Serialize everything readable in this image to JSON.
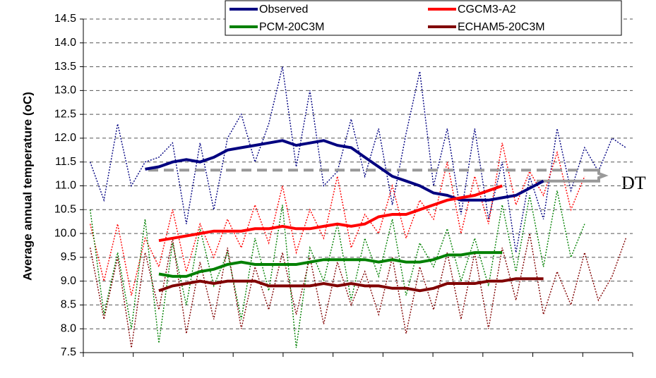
{
  "chart_data": {
    "type": "line",
    "y_label": "Average annual temperature (oC)",
    "annotation": "DT",
    "reference_line": 11.33,
    "bracket": [
      11.1,
      11.33
    ],
    "categories": [
      null,
      null,
      null,
      null,
      null,
      null,
      null,
      null,
      null,
      null,
      null,
      null,
      null,
      null,
      null,
      null,
      null,
      null,
      null,
      null,
      null,
      null,
      null,
      null,
      null,
      null,
      null,
      null,
      null,
      null,
      null,
      null,
      null,
      null,
      null,
      null,
      null,
      null,
      null,
      null
    ],
    "ylim": [
      7.5,
      14.5
    ],
    "yticks": [
      7.5,
      {
        "value": 8,
        "label": "8.0"
      },
      8.5,
      {
        "value": 9,
        "label": "9.0"
      },
      9.5,
      {
        "value": 10,
        "label": "10.0"
      },
      10.5,
      {
        "value": 11,
        "label": "11.0"
      },
      11.5,
      {
        "value": 12,
        "label": "12.0"
      },
      12.5,
      {
        "value": 13,
        "label": "13.0"
      },
      13.5,
      {
        "value": 14,
        "label": "14.0"
      },
      14.5
    ],
    "grid": true,
    "series": [
      {
        "name": "Observed",
        "color": "#000080",
        "values": [
          null,
          null,
          null,
          null,
          11.35,
          11.4,
          11.5,
          11.55,
          11.5,
          11.6,
          11.75,
          11.8,
          11.85,
          11.9,
          11.95,
          11.85,
          11.9,
          11.95,
          11.85,
          11.8,
          11.6,
          11.4,
          11.2,
          11.1,
          11.0,
          10.85,
          10.8,
          10.7,
          10.7,
          10.7,
          10.75,
          10.8,
          10.95,
          11.1,
          null,
          null,
          null,
          null,
          null,
          null
        ],
        "annual": [
          11.5,
          10.7,
          12.3,
          11.0,
          11.5,
          11.6,
          11.9,
          10.2,
          11.9,
          10.5,
          12.0,
          12.5,
          11.5,
          12.3,
          13.5,
          11.4,
          13.0,
          11.0,
          11.3,
          12.4,
          11.2,
          12.2,
          10.6,
          12.1,
          13.4,
          11.0,
          12.2,
          10.4,
          12.2,
          10.3,
          11.5,
          9.6,
          11.2,
          10.3,
          12.2,
          10.9,
          11.8,
          11.3,
          12.0,
          11.8
        ]
      },
      {
        "name": "CGCM3-A2",
        "color": "#ff0000",
        "values": [
          null,
          null,
          null,
          null,
          null,
          9.85,
          9.9,
          9.95,
          10.0,
          10.05,
          10.05,
          10.05,
          10.1,
          10.1,
          10.15,
          10.1,
          10.1,
          10.15,
          10.2,
          10.15,
          10.2,
          10.35,
          10.4,
          10.4,
          10.5,
          10.6,
          10.7,
          10.75,
          10.8,
          10.9,
          11.0,
          null,
          null,
          null,
          null,
          null,
          null,
          null,
          null,
          null
        ],
        "annual": [
          10.2,
          9.0,
          10.2,
          8.7,
          9.9,
          9.3,
          10.5,
          9.2,
          10.2,
          9.5,
          10.3,
          9.7,
          10.6,
          9.8,
          11.0,
          9.6,
          10.5,
          9.9,
          11.2,
          9.7,
          10.4,
          10.0,
          11.0,
          9.9,
          10.7,
          10.3,
          11.5,
          10.0,
          11.2,
          10.2,
          11.9,
          10.6,
          11.3,
          10.8,
          11.7,
          10.5,
          11.2,
          null,
          null,
          null
        ]
      },
      {
        "name": "PCM-20C3M",
        "color": "#008000",
        "values": [
          null,
          null,
          null,
          null,
          null,
          9.15,
          9.1,
          9.1,
          9.2,
          9.25,
          9.35,
          9.4,
          9.35,
          9.35,
          9.35,
          9.35,
          9.4,
          9.45,
          9.45,
          9.45,
          9.45,
          9.4,
          9.45,
          9.4,
          9.4,
          9.45,
          9.55,
          9.55,
          9.6,
          9.6,
          9.6,
          null,
          null,
          null,
          null,
          null,
          null,
          null,
          null,
          null
        ],
        "annual": [
          10.5,
          8.3,
          9.6,
          8.0,
          10.3,
          7.7,
          9.8,
          8.5,
          10.1,
          8.9,
          9.6,
          8.2,
          9.9,
          8.8,
          10.6,
          7.6,
          9.7,
          9.0,
          10.2,
          8.6,
          9.9,
          9.1,
          10.3,
          8.7,
          9.8,
          9.3,
          10.1,
          9.0,
          9.9,
          8.9,
          10.6,
          9.2,
          10.8,
          9.3,
          10.9,
          9.5,
          10.2,
          null,
          null,
          null
        ]
      },
      {
        "name": "ECHAM5-20C3M",
        "color": "#800000",
        "values": [
          null,
          null,
          null,
          null,
          null,
          8.8,
          8.9,
          8.95,
          9.0,
          8.95,
          9.0,
          9.0,
          9.0,
          8.9,
          8.9,
          8.9,
          8.9,
          8.95,
          8.9,
          8.95,
          8.9,
          8.9,
          8.85,
          8.85,
          8.8,
          8.85,
          8.95,
          8.95,
          8.95,
          9.0,
          9.0,
          9.05,
          9.05,
          9.05,
          null,
          null,
          null,
          null,
          null,
          null
        ],
        "annual": [
          9.7,
          8.2,
          9.5,
          7.6,
          9.6,
          8.4,
          9.9,
          7.9,
          9.4,
          8.2,
          9.7,
          8.0,
          9.3,
          8.4,
          9.6,
          8.3,
          9.5,
          8.1,
          9.4,
          8.5,
          9.2,
          8.3,
          9.5,
          7.9,
          9.3,
          8.4,
          9.6,
          8.2,
          9.6,
          8.0,
          9.7,
          8.6,
          10.0,
          8.3,
          9.2,
          8.5,
          9.6,
          8.6,
          9.1,
          9.9
        ]
      }
    ]
  }
}
